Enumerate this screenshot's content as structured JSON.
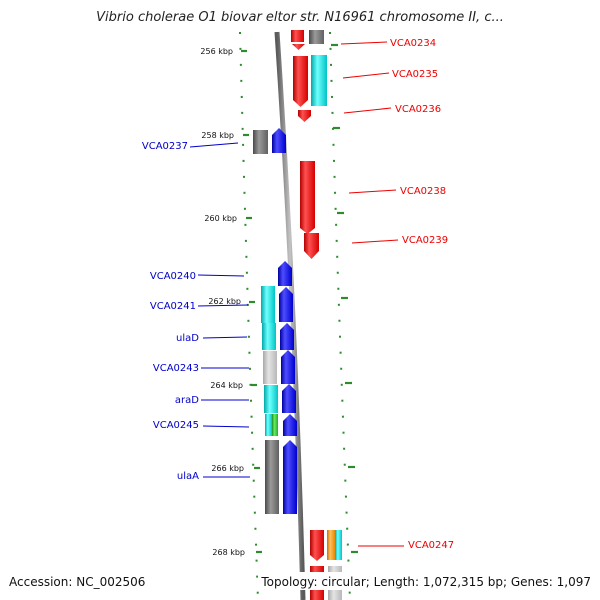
{
  "header": {
    "title": "Vibrio cholerae O1 biovar eltor str. N16961 chromosome II, c..."
  },
  "footer": {
    "accession": "Accession: NC_002506",
    "summary": "Topology: circular; Length: 1,072,315 bp; Genes: 1,097"
  },
  "colors": {
    "forward": "#ff0000",
    "reverse": "#0000ff",
    "cyan": "#00d8d8",
    "gray": "#777777",
    "light_gray": "#c8c8c8",
    "green": "#33cc33",
    "orange": "#ff9900",
    "backbone": "#888888",
    "tick": "#2e8b2e"
  },
  "scale_labels": [
    "256 kbp",
    "258 kbp",
    "260 kbp",
    "262 kbp",
    "264 kbp",
    "266 kbp",
    "268 kbp"
  ],
  "genes_right": [
    "VCA0234",
    "VCA0235",
    "VCA0236",
    "VCA0238",
    "VCA0239",
    "VCA0247"
  ],
  "genes_left": [
    "VCA0237",
    "VCA0240",
    "VCA0241",
    "ulaD",
    "VCA0243",
    "araD",
    "VCA0245",
    "ulaA"
  ]
}
